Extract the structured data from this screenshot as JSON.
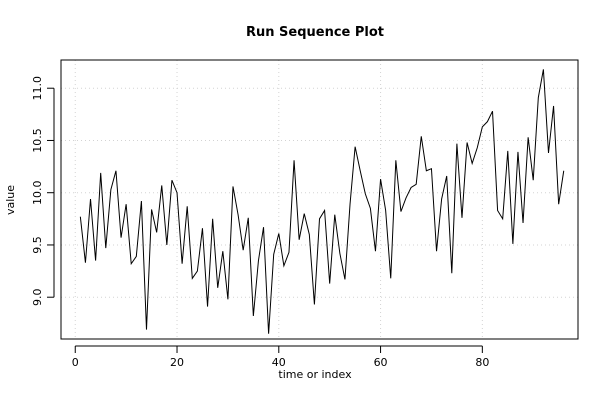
{
  "chart_data": {
    "type": "line",
    "title": "Run Sequence Plot",
    "xlabel": "time or index",
    "ylabel": "value",
    "xlim": [
      -2.8,
      98.8
    ],
    "ylim": [
      8.6,
      11.27
    ],
    "xticks": [
      0,
      20,
      40,
      60,
      80
    ],
    "yticks": [
      9.0,
      9.5,
      10.0,
      10.5,
      11.0
    ],
    "xtick_labels": [
      "0",
      "20",
      "40",
      "60",
      "80"
    ],
    "ytick_labels": [
      "9.0",
      "9.5",
      "10.0",
      "10.5",
      "11.0"
    ],
    "grid": true,
    "line_color": "#000000",
    "grid_color": "#d3d3d3",
    "series": [
      {
        "x": [
          1,
          2,
          3,
          4,
          5,
          6,
          7,
          8,
          9,
          10,
          11,
          12,
          13,
          14,
          15,
          16,
          17,
          18,
          19,
          20,
          21,
          22,
          23,
          24,
          25,
          26,
          27,
          28,
          29,
          30,
          31,
          32,
          33,
          34,
          35,
          36,
          37,
          38,
          39,
          40,
          41,
          42,
          43,
          44,
          45,
          46,
          47,
          48,
          49,
          50,
          51,
          52,
          53,
          54,
          55,
          56,
          57,
          58,
          59,
          60,
          61,
          62,
          63,
          64,
          65,
          66,
          67,
          68,
          69,
          70,
          71,
          72,
          73,
          74,
          75,
          76,
          77,
          78,
          79,
          80,
          81,
          82,
          83,
          84,
          85,
          86,
          87,
          88,
          89,
          90,
          91,
          92,
          93,
          94,
          95,
          96
        ],
        "y": [
          9.77,
          9.33,
          9.94,
          9.35,
          10.19,
          9.47,
          10.03,
          10.21,
          9.57,
          9.89,
          9.32,
          9.39,
          9.92,
          8.69,
          9.84,
          9.62,
          10.07,
          9.5,
          10.12,
          10.0,
          9.32,
          9.87,
          9.18,
          9.25,
          9.66,
          8.91,
          9.75,
          9.09,
          9.44,
          8.98,
          10.06,
          9.79,
          9.45,
          9.76,
          8.82,
          9.35,
          9.67,
          8.65,
          9.41,
          9.61,
          9.3,
          9.43,
          10.31,
          9.55,
          9.8,
          9.6,
          8.93,
          9.75,
          9.83,
          9.13,
          9.79,
          9.42,
          9.17,
          9.89,
          10.44,
          10.21,
          9.99,
          9.85,
          9.44,
          10.13,
          9.83,
          9.18,
          10.31,
          9.82,
          9.95,
          10.05,
          10.08,
          10.54,
          10.21,
          10.23,
          9.44,
          9.94,
          10.16,
          9.23,
          10.47,
          9.76,
          10.48,
          10.28,
          10.43,
          10.63,
          10.68,
          10.78,
          9.83,
          9.75,
          10.4,
          9.51,
          10.39,
          9.71,
          10.53,
          10.12,
          10.91,
          11.18,
          10.38,
          10.83,
          9.89,
          10.21
        ]
      }
    ]
  }
}
